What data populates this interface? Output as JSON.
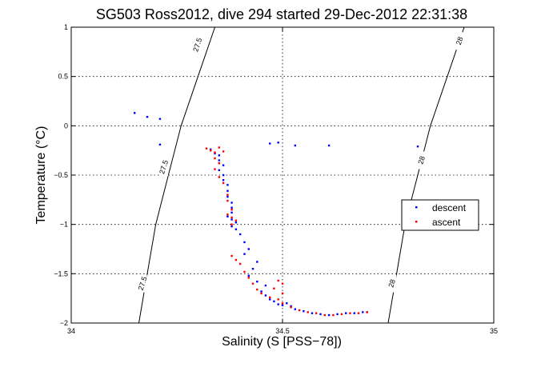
{
  "chart_data": {
    "type": "scatter",
    "title": "SG503 Ross2012, dive 294 started 29-Dec-2012 22:31:38",
    "xlabel": "Salinity (S [PSS−78])",
    "ylabel": "Temperature (°C)",
    "xlim": [
      34,
      35
    ],
    "ylim": [
      -2,
      1
    ],
    "x_ticks": [
      {
        "value": 34,
        "label": "34"
      },
      {
        "value": 34.5,
        "label": "34.5"
      },
      {
        "value": 35,
        "label": "35"
      }
    ],
    "y_ticks": [
      {
        "value": 1,
        "label": "1"
      },
      {
        "value": 0.5,
        "label": "0.5"
      },
      {
        "value": 0,
        "label": "0"
      },
      {
        "value": -0.5,
        "label": "−0.5"
      },
      {
        "value": -1,
        "label": "−1"
      },
      {
        "value": -1.5,
        "label": "−1.5"
      },
      {
        "value": -2,
        "label": "−2"
      }
    ],
    "grid": true,
    "grid_lines_at": {
      "x": [
        34.5
      ],
      "y": [
        0.5,
        0,
        -0.5,
        -1,
        -1.5
      ]
    },
    "legend": {
      "position": "right",
      "entries": [
        "descent",
        "ascent"
      ]
    },
    "contours": [
      {
        "level_label": "27.5",
        "points": [
          [
            34.16,
            -2.0
          ],
          [
            34.18,
            -1.5
          ],
          [
            34.2,
            -1.0
          ],
          [
            34.23,
            -0.5
          ],
          [
            34.26,
            0.0
          ],
          [
            34.3,
            0.5
          ],
          [
            34.34,
            1.0
          ]
        ],
        "labels_at": [
          [
            34.17,
            -1.6
          ],
          [
            34.22,
            -0.42
          ],
          [
            34.3,
            0.82
          ]
        ]
      },
      {
        "level_label": "28",
        "points": [
          [
            34.75,
            -2.0
          ],
          [
            34.77,
            -1.5
          ],
          [
            34.79,
            -1.0
          ],
          [
            34.82,
            -0.5
          ],
          [
            34.85,
            0.0
          ],
          [
            34.89,
            0.5
          ],
          [
            34.93,
            1.0
          ]
        ],
        "labels_at": [
          [
            34.76,
            -1.6
          ],
          [
            34.83,
            -0.35
          ],
          [
            34.92,
            0.86
          ]
        ]
      }
    ],
    "series": [
      {
        "name": "descent",
        "color": "#0000ff",
        "points": [
          [
            34.15,
            0.13
          ],
          [
            34.18,
            0.09
          ],
          [
            34.21,
            0.07
          ],
          [
            34.21,
            -0.19
          ],
          [
            34.47,
            -0.18
          ],
          [
            34.49,
            -0.17
          ],
          [
            34.53,
            -0.2
          ],
          [
            34.61,
            -0.2
          ],
          [
            34.82,
            -0.21
          ],
          [
            34.33,
            -0.24
          ],
          [
            34.34,
            -0.28
          ],
          [
            34.35,
            -0.3
          ],
          [
            34.35,
            -0.35
          ],
          [
            34.36,
            -0.4
          ],
          [
            34.35,
            -0.45
          ],
          [
            34.36,
            -0.5
          ],
          [
            34.36,
            -0.55
          ],
          [
            34.37,
            -0.6
          ],
          [
            34.37,
            -0.66
          ],
          [
            34.37,
            -0.72
          ],
          [
            34.38,
            -0.78
          ],
          [
            34.38,
            -0.83
          ],
          [
            34.38,
            -0.88
          ],
          [
            34.37,
            -0.92
          ],
          [
            34.38,
            -0.95
          ],
          [
            34.39,
            -0.98
          ],
          [
            34.38,
            -1.02
          ],
          [
            34.39,
            -1.05
          ],
          [
            34.4,
            -1.1
          ],
          [
            34.41,
            -1.18
          ],
          [
            34.42,
            -1.25
          ],
          [
            34.41,
            -1.3
          ],
          [
            34.44,
            -1.38
          ],
          [
            34.43,
            -1.45
          ],
          [
            34.42,
            -1.52
          ],
          [
            34.44,
            -1.58
          ],
          [
            34.46,
            -1.62
          ],
          [
            34.45,
            -1.68
          ],
          [
            34.46,
            -1.72
          ],
          [
            34.47,
            -1.76
          ],
          [
            34.48,
            -1.78
          ],
          [
            34.49,
            -1.81
          ],
          [
            34.5,
            -1.82
          ],
          [
            34.51,
            -1.8
          ],
          [
            34.52,
            -1.83
          ],
          [
            34.53,
            -1.86
          ],
          [
            34.55,
            -1.88
          ],
          [
            34.57,
            -1.9
          ],
          [
            34.59,
            -1.91
          ],
          [
            34.61,
            -1.92
          ],
          [
            34.63,
            -1.91
          ],
          [
            34.65,
            -1.9
          ],
          [
            34.67,
            -1.9
          ],
          [
            34.69,
            -1.89
          ],
          [
            34.7,
            -1.89
          ]
        ]
      },
      {
        "name": "ascent",
        "color": "#ff0000",
        "points": [
          [
            34.32,
            -0.23
          ],
          [
            34.33,
            -0.25
          ],
          [
            34.34,
            -0.27
          ],
          [
            34.35,
            -0.22
          ],
          [
            34.36,
            -0.26
          ],
          [
            34.34,
            -0.33
          ],
          [
            34.35,
            -0.38
          ],
          [
            34.34,
            -0.44
          ],
          [
            34.35,
            -0.52
          ],
          [
            34.36,
            -0.58
          ],
          [
            34.37,
            -0.7
          ],
          [
            34.37,
            -0.76
          ],
          [
            34.38,
            -0.85
          ],
          [
            34.37,
            -0.9
          ],
          [
            34.38,
            -0.93
          ],
          [
            34.39,
            -0.96
          ],
          [
            34.38,
            -1.0
          ],
          [
            34.38,
            -1.32
          ],
          [
            34.39,
            -1.36
          ],
          [
            34.4,
            -1.4
          ],
          [
            34.41,
            -1.48
          ],
          [
            34.42,
            -1.54
          ],
          [
            34.43,
            -1.6
          ],
          [
            34.44,
            -1.66
          ],
          [
            34.45,
            -1.7
          ],
          [
            34.47,
            -1.74
          ],
          [
            34.48,
            -1.65
          ],
          [
            34.49,
            -1.57
          ],
          [
            34.5,
            -1.6
          ],
          [
            34.5,
            -1.7
          ],
          [
            34.49,
            -1.76
          ],
          [
            34.5,
            -1.8
          ],
          [
            34.52,
            -1.84
          ],
          [
            34.54,
            -1.87
          ],
          [
            34.56,
            -1.89
          ],
          [
            34.58,
            -1.9
          ],
          [
            34.6,
            -1.92
          ],
          [
            34.62,
            -1.92
          ],
          [
            34.64,
            -1.91
          ],
          [
            34.66,
            -1.9
          ],
          [
            34.68,
            -1.9
          ],
          [
            34.7,
            -1.89
          ]
        ]
      }
    ]
  }
}
